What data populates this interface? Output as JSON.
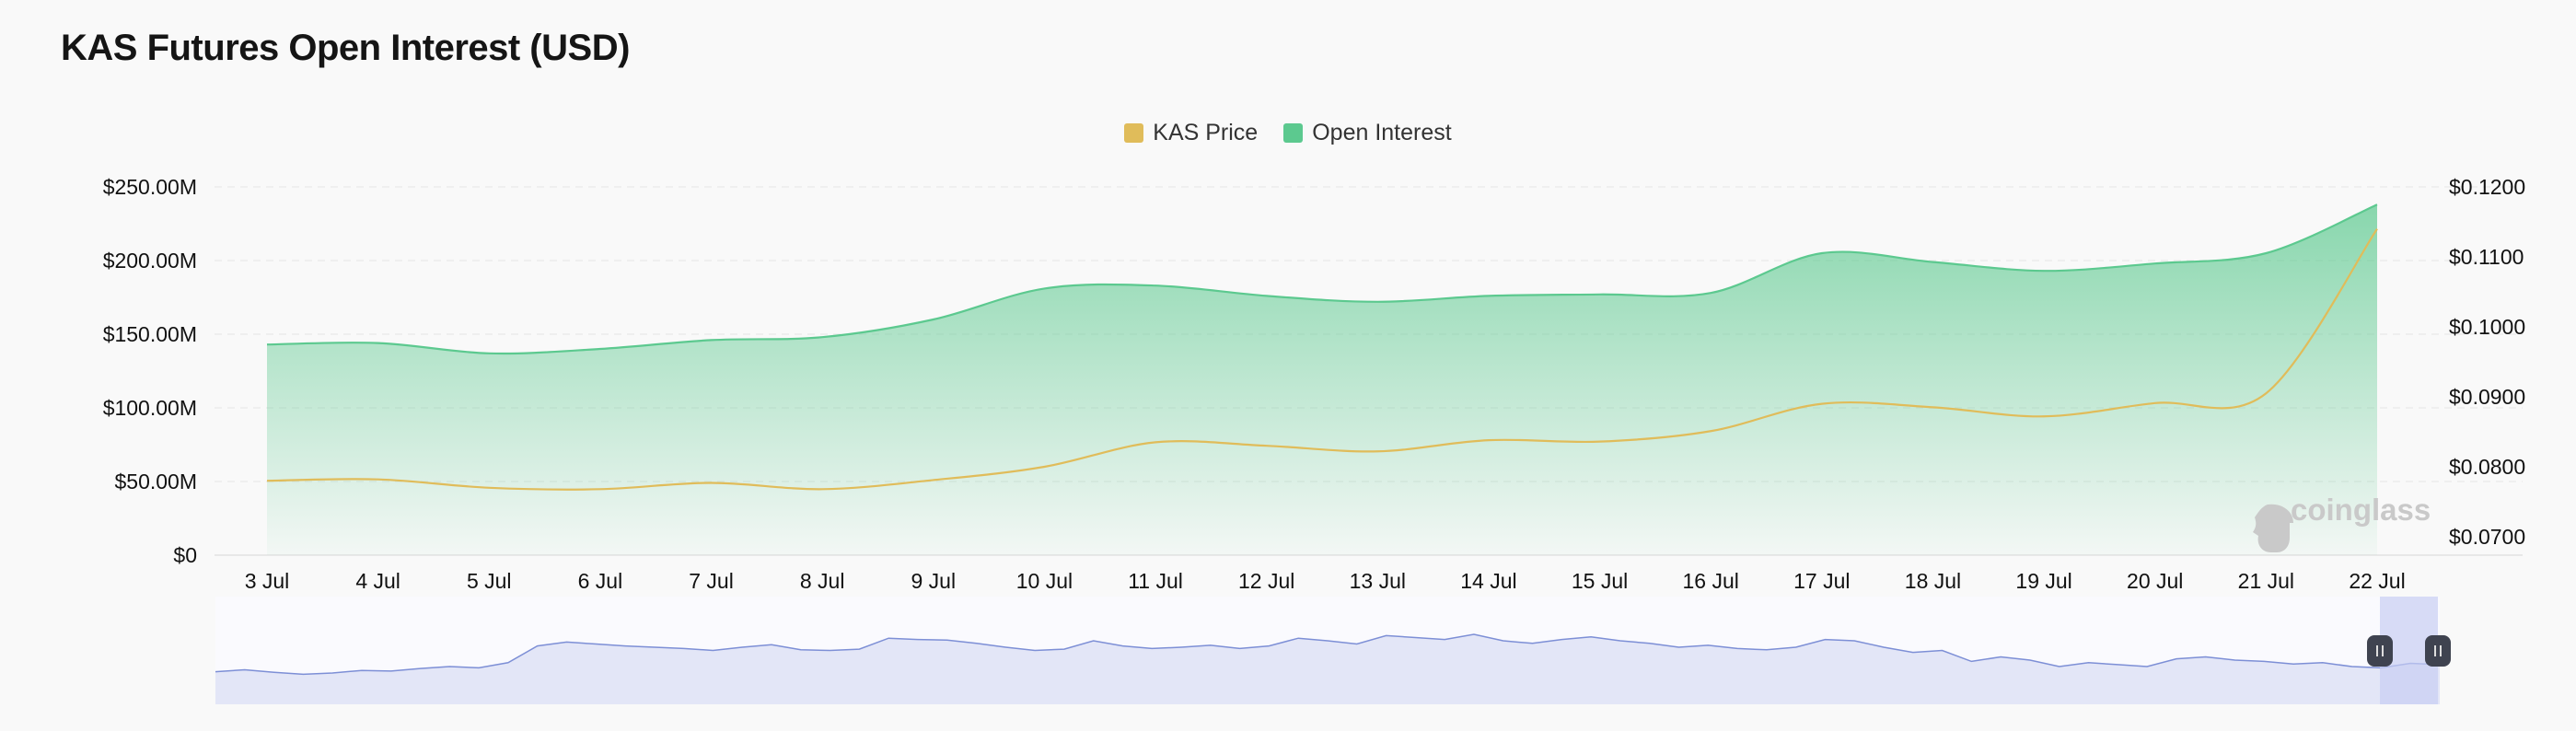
{
  "page": {
    "title": "KAS Futures Open Interest (USD)"
  },
  "legend": [
    {
      "label": "KAS Price",
      "color": "#e0bc5a"
    },
    {
      "label": "Open Interest",
      "color": "#5cc98f"
    }
  ],
  "watermark": "coinglass",
  "chart_data": {
    "type": "area",
    "title": "KAS Futures Open Interest (USD)",
    "categories": [
      "3 Jul",
      "4 Jul",
      "5 Jul",
      "6 Jul",
      "7 Jul",
      "8 Jul",
      "9 Jul",
      "10 Jul",
      "11 Jul",
      "12 Jul",
      "13 Jul",
      "14 Jul",
      "15 Jul",
      "16 Jul",
      "17 Jul",
      "18 Jul",
      "19 Jul",
      "20 Jul",
      "21 Jul",
      "22 Jul"
    ],
    "y_left": {
      "ticks": [
        "$0",
        "$50.00M",
        "$100.00M",
        "$150.00M",
        "$200.00M",
        "$250.00M"
      ],
      "lim": [
        0,
        250
      ]
    },
    "y_right": {
      "ticks": [
        "$0.0700",
        "$0.0800",
        "$0.0900",
        "$0.1000",
        "$0.1100",
        "$0.1200"
      ],
      "lim": [
        0.07,
        0.12
      ]
    },
    "series": [
      {
        "name": "Open Interest",
        "axis": "left",
        "unit": "$M",
        "color": "#5cc98f",
        "values": [
          143,
          144,
          137,
          140,
          146,
          148,
          160,
          181,
          183,
          176,
          172,
          176,
          177,
          178,
          205,
          199,
          193,
          198,
          205,
          238
        ]
      },
      {
        "name": "KAS Price",
        "axis": "right",
        "unit": "USD",
        "color": "#e0bc5a",
        "values": [
          0.078,
          0.0782,
          0.077,
          0.0768,
          0.0777,
          0.0768,
          0.0781,
          0.08,
          0.0835,
          0.083,
          0.0822,
          0.0838,
          0.0836,
          0.0851,
          0.089,
          0.0885,
          0.0872,
          0.0891,
          0.0905,
          0.114
        ]
      }
    ],
    "overview": {
      "values": [
        0.22,
        0.25,
        0.21,
        0.18,
        0.2,
        0.24,
        0.23,
        0.27,
        0.3,
        0.28,
        0.36,
        0.62,
        0.68,
        0.65,
        0.62,
        0.6,
        0.58,
        0.55,
        0.6,
        0.64,
        0.56,
        0.55,
        0.57,
        0.74,
        0.72,
        0.71,
        0.66,
        0.6,
        0.55,
        0.57,
        0.7,
        0.62,
        0.58,
        0.6,
        0.63,
        0.58,
        0.62,
        0.74,
        0.7,
        0.65,
        0.78,
        0.75,
        0.72,
        0.8,
        0.7,
        0.66,
        0.72,
        0.76,
        0.7,
        0.66,
        0.6,
        0.63,
        0.58,
        0.56,
        0.6,
        0.72,
        0.7,
        0.6,
        0.52,
        0.55,
        0.38,
        0.45,
        0.4,
        0.3,
        0.36,
        0.33,
        0.3,
        0.42,
        0.45,
        0.4,
        0.38,
        0.34,
        0.36,
        0.3,
        0.28,
        0.35,
        0.33
      ]
    }
  }
}
